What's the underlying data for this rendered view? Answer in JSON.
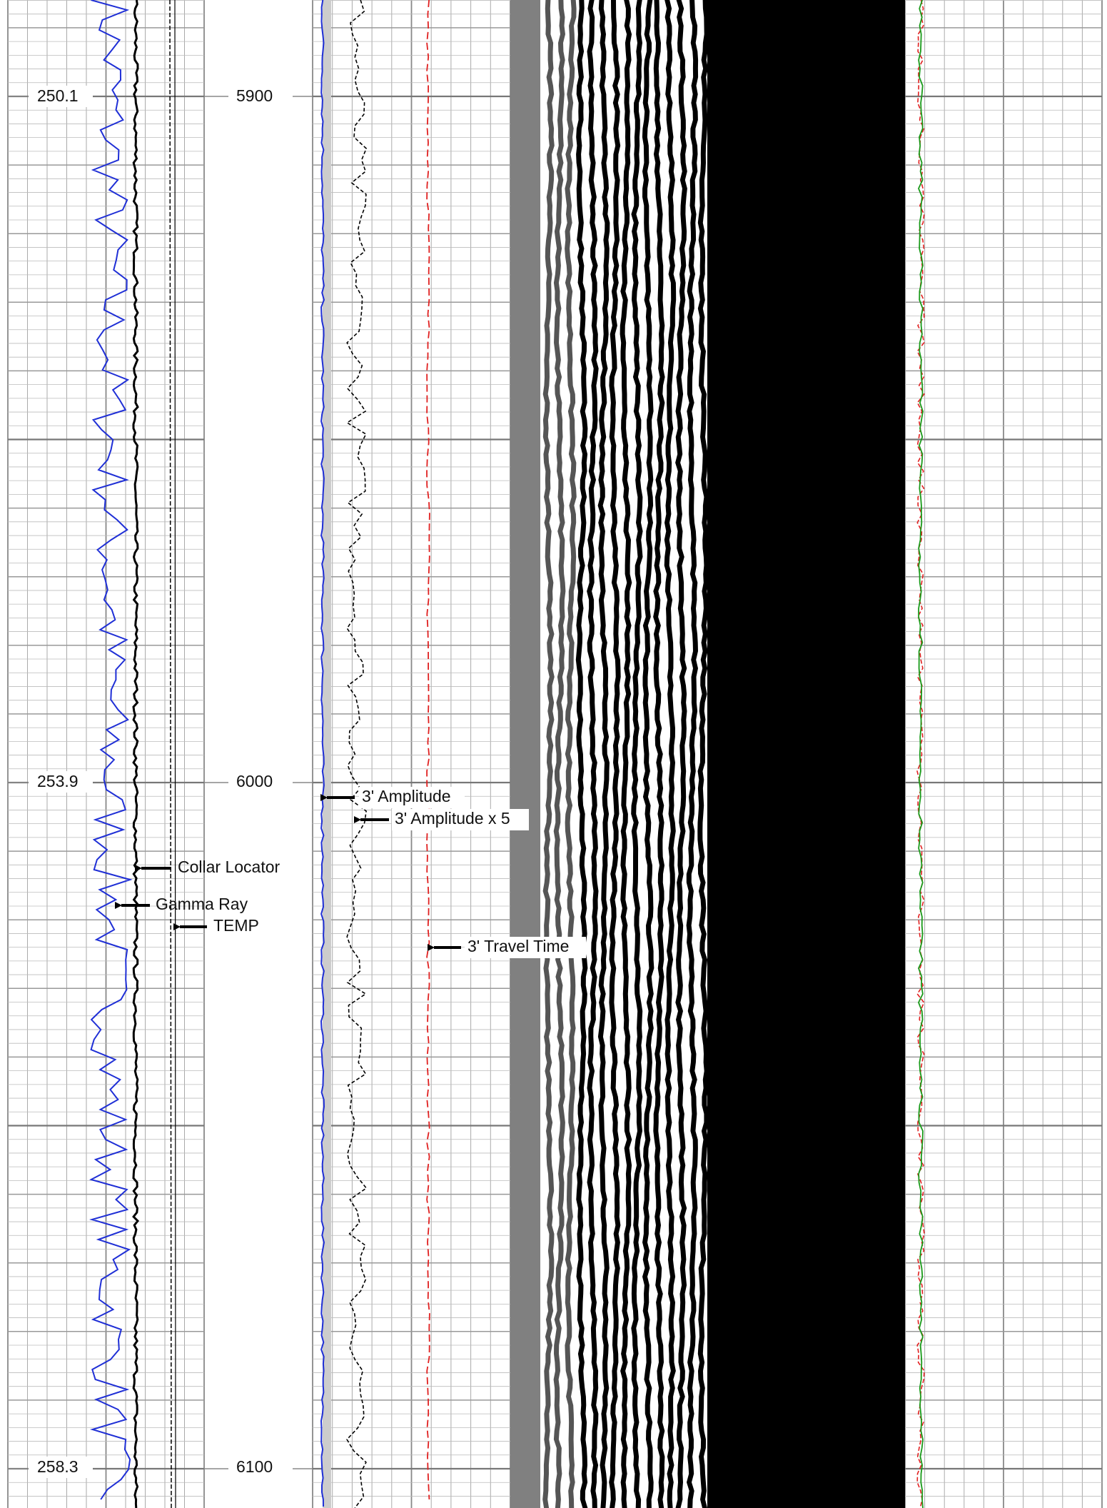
{
  "temperature_labels": [
    "250.1",
    "253.9",
    "258.3"
  ],
  "depth_labels": [
    "5900",
    "6000",
    "6100"
  ],
  "annotations": {
    "collar_locator": "Collar Locator",
    "gamma_ray": "Gamma Ray",
    "temp": "TEMP",
    "amplitude": "3' Amplitude",
    "amplitude_x5": "3' Amplitude x 5",
    "travel_time": "3' Travel Time"
  }
}
